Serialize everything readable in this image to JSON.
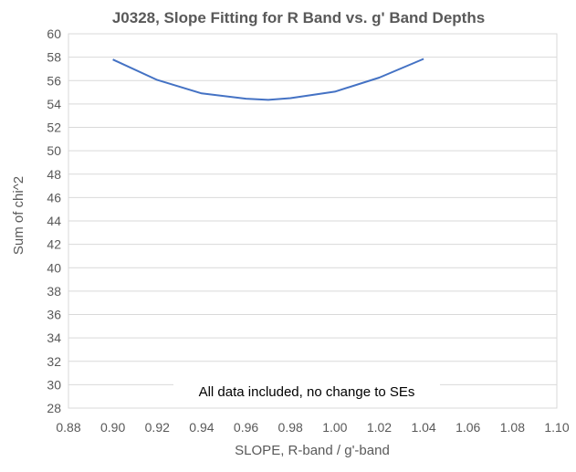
{
  "chart_data": {
    "type": "line",
    "title": "J0328, Slope Fitting for R Band vs. g' Band Depths",
    "xlabel": "SLOPE, R-band / g'-band",
    "ylabel": "Sum of chi^2",
    "xlim": [
      0.88,
      1.1
    ],
    "ylim": [
      28,
      60
    ],
    "x_ticks": [
      "0.88",
      "0.90",
      "0.92",
      "0.94",
      "0.96",
      "0.98",
      "1.00",
      "1.02",
      "1.04",
      "1.06",
      "1.08",
      "1.10"
    ],
    "y_ticks": [
      "28",
      "30",
      "32",
      "34",
      "36",
      "38",
      "40",
      "42",
      "44",
      "46",
      "48",
      "50",
      "52",
      "54",
      "56",
      "58",
      "60"
    ],
    "grid": "horizontal",
    "legend": "none",
    "series": [
      {
        "x": [
          0.9,
          0.92,
          0.94,
          0.96,
          0.97,
          0.98,
          1.0,
          1.02,
          1.04
        ],
        "y": [
          57.8,
          56.05,
          54.9,
          54.45,
          54.35,
          54.5,
          55.05,
          56.25,
          57.85
        ],
        "color": "#4472C4"
      }
    ],
    "annotations": [
      "All data included, no change to SEs"
    ]
  }
}
